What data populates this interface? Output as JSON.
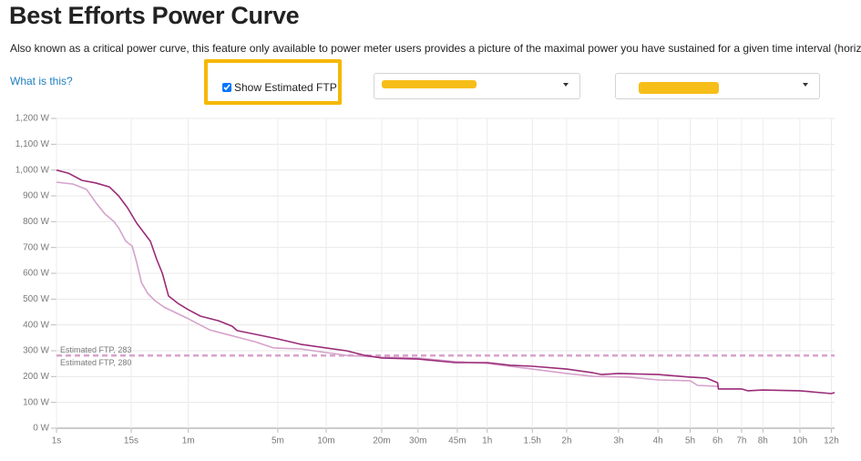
{
  "page": {
    "title": "Best Efforts Power Curve",
    "description": "Also known as a critical power curve, this feature only available to power meter users provides a picture of the maximal power you have sustained for a given time interval (horiz",
    "help_link": "What is this?",
    "checkbox_label": "Show Estimated FTP"
  },
  "chart_data": {
    "type": "line",
    "xscale": "pow",
    "xexponent": 0.2,
    "xlim": [
      1,
      44000
    ],
    "ylim": [
      0,
      1200
    ],
    "grid": true,
    "xticks": [
      {
        "value": 1,
        "label": "1s"
      },
      {
        "value": 15,
        "label": "15s"
      },
      {
        "value": 60,
        "label": "1m"
      },
      {
        "value": 300,
        "label": "5m"
      },
      {
        "value": 600,
        "label": "10m"
      },
      {
        "value": 1200,
        "label": "20m"
      },
      {
        "value": 1800,
        "label": "30m"
      },
      {
        "value": 2700,
        "label": "45m"
      },
      {
        "value": 3600,
        "label": "1h"
      },
      {
        "value": 5400,
        "label": "1.5h"
      },
      {
        "value": 7200,
        "label": "2h"
      },
      {
        "value": 10800,
        "label": "3h"
      },
      {
        "value": 14400,
        "label": "4h"
      },
      {
        "value": 18000,
        "label": "5h"
      },
      {
        "value": 21600,
        "label": "6h"
      },
      {
        "value": 25200,
        "label": "7h"
      },
      {
        "value": 28800,
        "label": "8h"
      },
      {
        "value": 36000,
        "label": "10h"
      },
      {
        "value": 43200,
        "label": "12h"
      }
    ],
    "yticks": [
      {
        "value": 0,
        "label": "0 W"
      },
      {
        "value": 100,
        "label": "100 W"
      },
      {
        "value": 200,
        "label": "200 W"
      },
      {
        "value": 300,
        "label": "300 W"
      },
      {
        "value": 400,
        "label": "400 W"
      },
      {
        "value": 500,
        "label": "500 W"
      },
      {
        "value": 600,
        "label": "600 W"
      },
      {
        "value": 700,
        "label": "700 W"
      },
      {
        "value": 800,
        "label": "800 W"
      },
      {
        "value": 900,
        "label": "900 W"
      },
      {
        "value": 1000,
        "label": "1,000 W"
      },
      {
        "value": 1100,
        "label": "1,100 W"
      },
      {
        "value": 1200,
        "label": "1,200 W"
      }
    ],
    "ftp_lines": [
      {
        "label": "Estimated FTP, 283",
        "value": 283,
        "color": "#d9a3cd"
      },
      {
        "label": "Estimated FTP, 280",
        "value": 280,
        "color": "#d9a3cd"
      }
    ],
    "series": [
      {
        "color": "#d6a2cb",
        "x": [
          1,
          2.08,
          3.56,
          4.95,
          6.75,
          9,
          10.4,
          12.9,
          15.4,
          17.5,
          19.8,
          23.3,
          28,
          34.9,
          60,
          92.6,
          154,
          209,
          281,
          422,
          600,
          781,
          1200,
          1800,
          2650,
          3600,
          5400,
          7200,
          8855,
          11685,
          14400,
          18000,
          18913,
          21600
        ],
        "values": [
          953,
          946,
          925,
          875,
          830,
          801,
          776,
          724,
          706,
          642,
          565,
          522,
          494,
          469,
          424,
          381,
          353,
          335,
          311,
          307,
          293,
          282,
          275,
          272,
          258,
          251,
          229,
          212,
          201,
          198,
          187,
          184,
          166,
          162
        ]
      },
      {
        "color": "#9b2c78",
        "x": [
          1,
          1.72,
          3,
          4.95,
          7.8,
          10.4,
          13.5,
          17.5,
          22.2,
          25,
          29.3,
          33.5,
          38.8,
          47.8,
          60,
          77.2,
          110,
          141,
          154,
          209,
          300,
          422,
          600,
          781,
          983,
          1200,
          1800,
          2650,
          3600,
          4458,
          5400,
          7200,
          8855,
          9506,
          10800,
          14400,
          18000,
          20086,
          21600,
          21716,
          25200,
          26185,
          28800,
          36000,
          43200,
          44000
        ],
        "values": [
          1000,
          988,
          960,
          950,
          935,
          900,
          854,
          794,
          748,
          724,
          653,
          600,
          512,
          484,
          459,
          434,
          416,
          395,
          378,
          364,
          346,
          325,
          311,
          300,
          282,
          272,
          268,
          254,
          254,
          244,
          240,
          229,
          215,
          208,
          212,
          208,
          198,
          194,
          176,
          152,
          152,
          145,
          148,
          145,
          134,
          138
        ]
      }
    ]
  }
}
